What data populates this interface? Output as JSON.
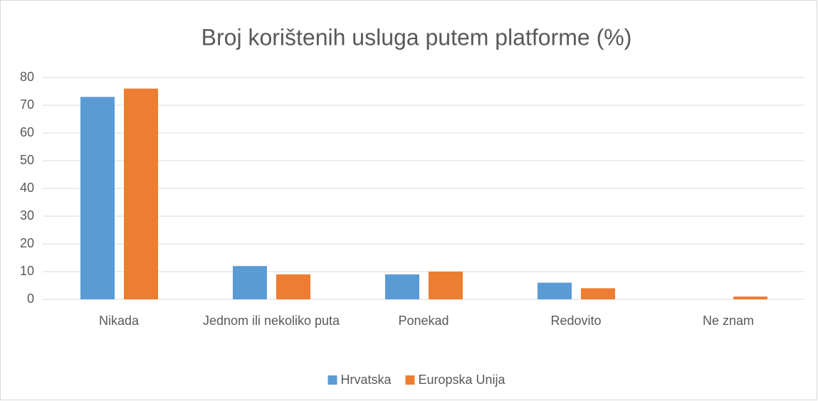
{
  "chart_data": {
    "type": "bar",
    "title": "Broj korištenih usluga putem platforme (%)",
    "categories": [
      "Nikada",
      "Jednom ili nekoliko puta",
      "Ponekad",
      "Redovito",
      "Ne znam"
    ],
    "series": [
      {
        "name": "Hrvatska",
        "color": "#5b9bd5",
        "values": [
          73,
          12,
          9,
          6,
          0
        ]
      },
      {
        "name": "Europska Unija",
        "color": "#ed7d31",
        "values": [
          76,
          9,
          10,
          4,
          1
        ]
      }
    ],
    "ylim": [
      0,
      80
    ],
    "yticks": [
      0,
      10,
      20,
      30,
      40,
      50,
      60,
      70,
      80
    ],
    "grid": true,
    "legend": "bottom"
  }
}
